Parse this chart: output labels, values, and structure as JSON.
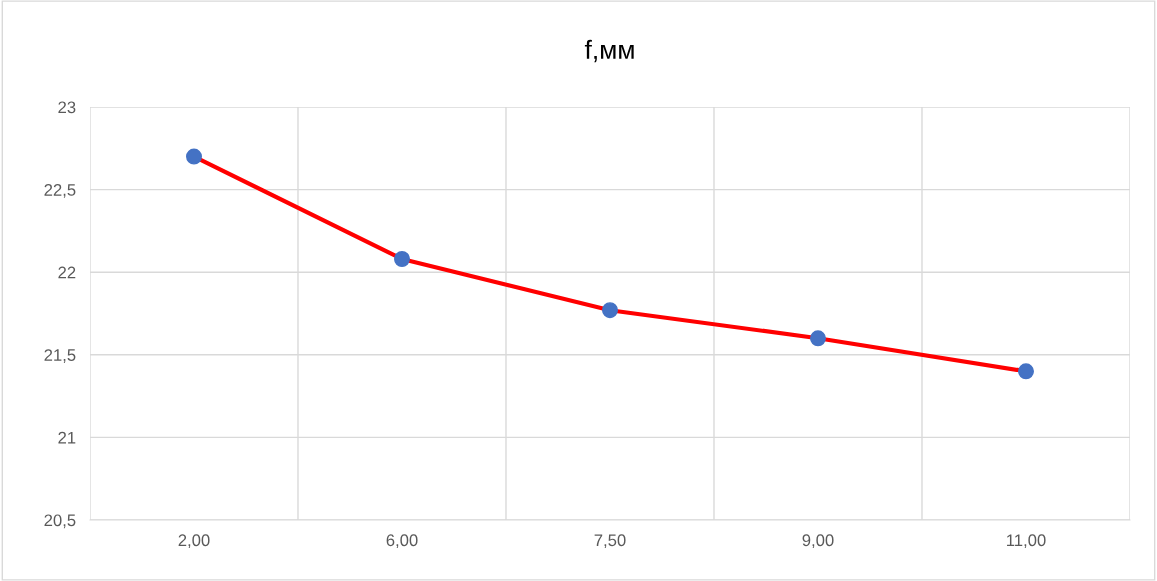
{
  "chart_data": {
    "type": "line",
    "title": "f,мм",
    "categories": [
      "2,00",
      "6,00",
      "7,50",
      "9,00",
      "11,00"
    ],
    "series": [
      {
        "color": "#ff0000",
        "colors": [
          "#4472c4",
          "#4472c4",
          "#4472c4",
          "#4472c4",
          "#4472c4"
        ],
        "values": [
          22.7,
          22.08,
          21.77,
          21.6,
          21.4
        ]
      }
    ],
    "ylim": [
      20.5,
      23
    ],
    "yticks": [
      {
        "value": 20.5,
        "label": "20,5"
      },
      {
        "value": 21,
        "label": "21"
      },
      {
        "value": 21.5,
        "label": "21,5"
      },
      {
        "value": 22,
        "label": "22"
      },
      {
        "value": 22.5,
        "label": "22,5"
      },
      {
        "value": 23,
        "label": "23"
      }
    ],
    "grid": true,
    "marker": "circle",
    "line_style": "solid"
  }
}
